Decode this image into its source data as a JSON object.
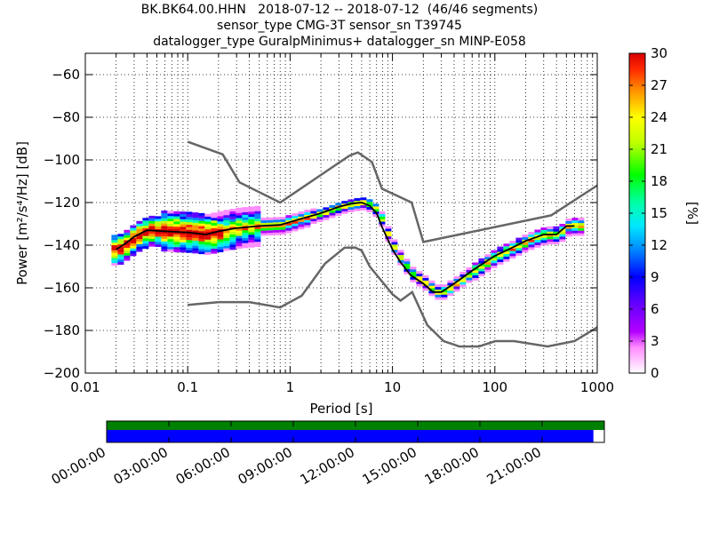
{
  "title": {
    "line1": "BK.BK64.00.HHN   2018-07-12 -- 2018-07-12  (46/46 segments)",
    "line2": "sensor_type CMG-3T sensor_sn T39745",
    "line3": "datalogger_type GuralpMinimus+ datalogger_sn MINP-E058"
  },
  "chart_data": [
    {
      "type": "heatmap",
      "title": "BK.BK64.00.HHN   2018-07-12 -- 2018-07-12  (46/46 segments)",
      "xlabel": "Period [s]",
      "ylabel": "Power [m²/s⁴/Hz] [dB]",
      "x_scale": "log",
      "xlim": [
        0.01,
        1000
      ],
      "ylim": [
        -200,
        -50
      ],
      "x_ticks": [
        0.01,
        0.1,
        1,
        10,
        100,
        1000
      ],
      "x_tick_labels": [
        "0.01",
        "0.1",
        "1",
        "10",
        "100",
        "1000"
      ],
      "y_ticks": [
        -200,
        -180,
        -160,
        -140,
        -120,
        -100,
        -80,
        -60
      ],
      "y_tick_labels": [
        "−200",
        "−180",
        "−160",
        "−140",
        "−120",
        "−100",
        "−80",
        "−60"
      ],
      "grid": true,
      "colorbar": {
        "label": "[%]",
        "min": 0,
        "max": 30,
        "ticks": [
          0,
          3,
          6,
          9,
          12,
          15,
          18,
          21,
          24,
          27,
          30
        ]
      },
      "series": [
        {
          "name": "",
          "color": "#666666",
          "x": [
            0.1,
            0.22,
            0.32,
            0.8,
            3.8,
            4.6,
            6.3,
            7.9,
            15.4,
            20,
            354.8,
            1000
          ],
          "y": [
            -91.5,
            -97.4,
            -110.5,
            -120,
            -98,
            -96.5,
            -101,
            -113.5,
            -120,
            -138.5,
            -126,
            -112
          ]
        },
        {
          "name": "",
          "color": "#666666",
          "x": [
            0.1,
            0.2,
            0.4,
            0.8,
            1.3,
            2.2,
            3.4,
            4.3,
            5,
            6,
            10,
            12,
            15.6,
            21.9,
            31.6,
            45,
            70,
            101,
            154,
            328,
            600,
            1000
          ],
          "y": [
            -168,
            -166.7,
            -166.7,
            -169.2,
            -163.7,
            -148.6,
            -141.2,
            -141.1,
            -142.5,
            -150,
            -163,
            -166,
            -162,
            -177.5,
            -185,
            -187.5,
            -187.5,
            -185,
            -185,
            -187.5,
            -185,
            -178.5
          ]
        },
        {
          "name": "",
          "color": "#000000",
          "x": [
            0.02,
            0.025,
            0.03,
            0.04,
            0.06,
            0.1,
            0.15,
            0.2,
            0.3,
            0.5,
            0.8,
            1.2,
            2,
            3,
            4,
            5,
            6,
            7,
            8,
            10,
            12,
            15,
            20,
            25,
            30,
            40,
            60,
            80,
            100,
            150,
            200,
            300,
            400,
            500,
            600
          ],
          "y": [
            -142,
            -139,
            -136,
            -133,
            -133.5,
            -134,
            -135,
            -133.5,
            -132,
            -131,
            -130.5,
            -128,
            -125,
            -122,
            -120.5,
            -120,
            -121.5,
            -125,
            -132,
            -142,
            -148,
            -154,
            -158,
            -162,
            -162,
            -158,
            -152,
            -148,
            -145,
            -141,
            -138,
            -135,
            -135,
            -131,
            -131
          ]
        }
      ]
    },
    {
      "type": "bar",
      "x_tick_labels": [
        "00:00:00",
        "03:00:00",
        "06:00:00",
        "09:00:00",
        "12:00:00",
        "15:00:00",
        "18:00:00",
        "21:00:00"
      ],
      "rows": [
        {
          "name": "",
          "color": "#008000",
          "coverage": 1.0
        },
        {
          "name": "",
          "color": "#0000ff",
          "coverage": 0.978
        }
      ]
    }
  ]
}
